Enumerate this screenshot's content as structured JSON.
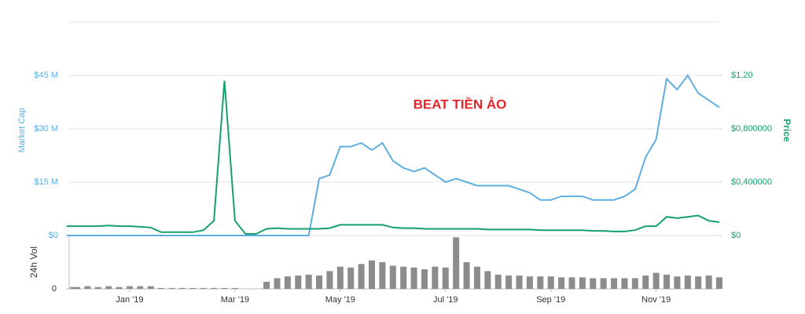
{
  "chart_data": {
    "type": "line",
    "annotation": "BEAT TIỀN ẢO",
    "categories": [
      null,
      null,
      null,
      null,
      null,
      null,
      "Jan '19",
      null,
      null,
      null,
      null,
      null,
      null,
      null,
      null,
      null,
      "Mar '19",
      null,
      null,
      null,
      null,
      null,
      null,
      null,
      null,
      null,
      "May '19",
      null,
      null,
      null,
      null,
      null,
      null,
      null,
      null,
      null,
      "Jul '19",
      null,
      null,
      null,
      null,
      null,
      null,
      null,
      null,
      null,
      "Sep '19",
      null,
      null,
      null,
      null,
      null,
      null,
      null,
      null,
      null,
      "Nov '19",
      null,
      null,
      null,
      null,
      null,
      null
    ],
    "ylim": [
      0,
      60000000
    ],
    "yticks": [
      {
        "value": 0,
        "label": "$0"
      },
      {
        "value": 15000000,
        "label": "$15 M"
      },
      {
        "value": 30000000,
        "label": "$30 M"
      },
      {
        "value": 45000000,
        "label": "$45 M"
      }
    ],
    "y2lim": [
      0,
      1.6
    ],
    "y2ticks": [
      {
        "value": 0,
        "label": "$0"
      },
      {
        "value": 0.4,
        "label": "$0,400000"
      },
      {
        "value": 0.8,
        "label": "$0,800000"
      },
      {
        "value": 1.2,
        "label": "$1,20"
      }
    ],
    "grid": true,
    "series": [
      {
        "name": "Market Cap",
        "color": "#5eafe0",
        "values": [
          0,
          0,
          0,
          0,
          0,
          0,
          0,
          0,
          0,
          0,
          0,
          0,
          0,
          0,
          0,
          0,
          0,
          0,
          0,
          0,
          0,
          0,
          0,
          0,
          16000000,
          17000000,
          25000000,
          25000000,
          26000000,
          24000000,
          26000000,
          21000000,
          19000000,
          18000000,
          19000000,
          17000000,
          15000000,
          16000000,
          15000000,
          14000000,
          14000000,
          14000000,
          14000000,
          13000000,
          12000000,
          10000000,
          10000000,
          11000000,
          11000000,
          11000000,
          10000000,
          10000000,
          10000000,
          11000000,
          13000000,
          22000000,
          27000000,
          44000000,
          41000000,
          45000000,
          40000000,
          38000000,
          36000000
        ]
      },
      {
        "name": "Price",
        "color": "#16a06c",
        "axis": "y2",
        "values": [
          0.07,
          0.07,
          0.07,
          0.07,
          0.075,
          0.07,
          0.07,
          0.065,
          0.06,
          0.025,
          0.025,
          0.025,
          0.025,
          0.04,
          0.11,
          1.16,
          0.11,
          0.012,
          0.012,
          0.05,
          0.055,
          0.05,
          0.05,
          0.05,
          0.05,
          0.055,
          0.08,
          0.08,
          0.08,
          0.08,
          0.08,
          0.06,
          0.055,
          0.055,
          0.05,
          0.05,
          0.05,
          0.05,
          0.05,
          0.05,
          0.045,
          0.045,
          0.045,
          0.045,
          0.045,
          0.04,
          0.04,
          0.04,
          0.04,
          0.04,
          0.035,
          0.035,
          0.03,
          0.03,
          0.04,
          0.07,
          0.07,
          0.14,
          0.13,
          0.14,
          0.15,
          0.11,
          0.1
        ]
      }
    ],
    "volume": {
      "name": "24h Vol",
      "color": "#8c8c8c",
      "ylim": [
        0,
        60
      ],
      "yticks": [
        0
      ],
      "values": [
        2,
        2,
        3,
        2,
        3,
        2,
        3,
        3,
        3,
        1,
        1,
        1,
        1,
        1,
        1,
        1,
        1,
        0,
        0,
        8,
        12,
        14,
        15,
        16,
        15,
        20,
        25,
        24,
        28,
        32,
        30,
        26,
        25,
        24,
        22,
        25,
        24,
        58,
        30,
        25,
        20,
        16,
        15,
        15,
        14,
        14,
        14,
        13,
        13,
        13,
        12,
        12,
        12,
        12,
        12,
        15,
        18,
        16,
        14,
        15,
        14,
        15,
        13
      ]
    }
  }
}
